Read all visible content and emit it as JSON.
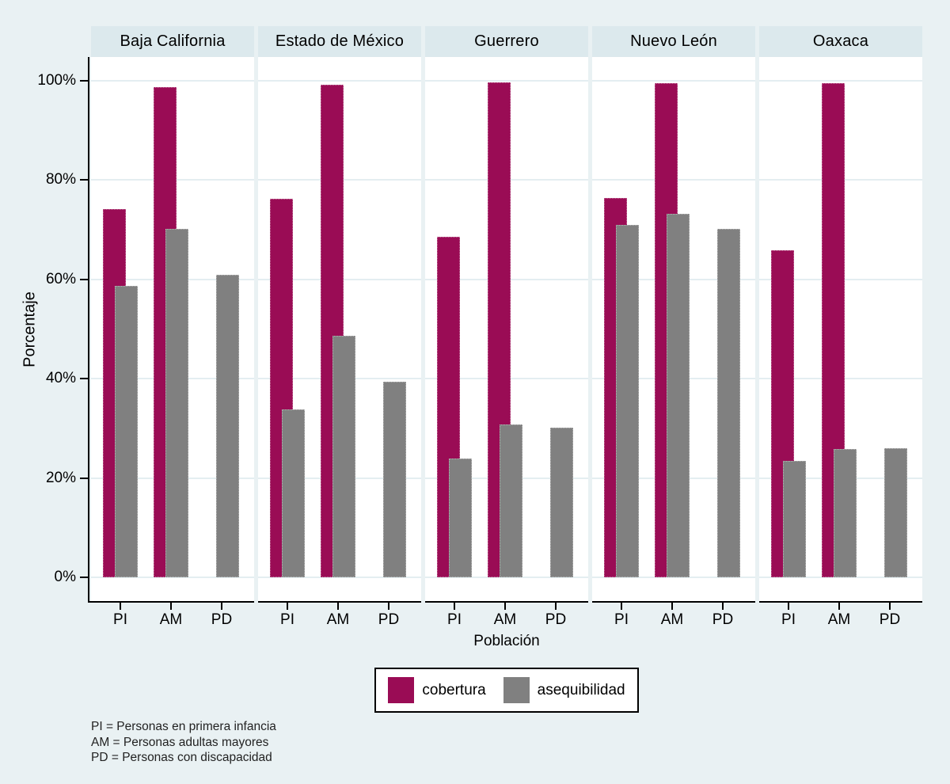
{
  "chart_data": {
    "type": "bar",
    "title": "",
    "xlabel": "Población",
    "ylabel": "Porcentaje",
    "ylim": [
      0,
      105
    ],
    "grid": true,
    "legend_position": "bottom",
    "categories": [
      "PI",
      "AM",
      "PD"
    ],
    "series": [
      {
        "name": "cobertura",
        "color": "#9a0c55"
      },
      {
        "name": "asequibilidad",
        "color": "#808080"
      }
    ],
    "yticks": [
      {
        "label": "0%",
        "value": 0
      },
      {
        "label": "20%",
        "value": 20
      },
      {
        "label": "40%",
        "value": 40
      },
      {
        "label": "60%",
        "value": 60
      },
      {
        "label": "80%",
        "value": 80
      },
      {
        "label": "100%",
        "value": 100
      }
    ],
    "panels": [
      {
        "label": "Baja California",
        "groups": [
          {
            "category": "PI",
            "cobertura": 74.1,
            "asequibilidad": 58.7
          },
          {
            "category": "AM",
            "cobertura": 98.7,
            "asequibilidad": 70.2
          },
          {
            "category": "PD",
            "cobertura": null,
            "asequibilidad": 60.9
          }
        ]
      },
      {
        "label": "Estado de México",
        "groups": [
          {
            "category": "PI",
            "cobertura": 76.2,
            "asequibilidad": 33.8
          },
          {
            "category": "AM",
            "cobertura": 99.2,
            "asequibilidad": 48.6
          },
          {
            "category": "PD",
            "cobertura": null,
            "asequibilidad": 39.4
          }
        ]
      },
      {
        "label": "Guerrero",
        "groups": [
          {
            "category": "PI",
            "cobertura": 68.6,
            "asequibilidad": 23.9
          },
          {
            "category": "AM",
            "cobertura": 99.6,
            "asequibilidad": 30.8
          },
          {
            "category": "PD",
            "cobertura": null,
            "asequibilidad": 30.1
          }
        ]
      },
      {
        "label": "Nuevo León",
        "groups": [
          {
            "category": "PI",
            "cobertura": 76.4,
            "asequibilidad": 70.9
          },
          {
            "category": "AM",
            "cobertura": 99.5,
            "asequibilidad": 73.1
          },
          {
            "category": "PD",
            "cobertura": null,
            "asequibilidad": 70.2
          }
        ]
      },
      {
        "label": "Oaxaca",
        "groups": [
          {
            "category": "PI",
            "cobertura": 65.8,
            "asequibilidad": 23.5
          },
          {
            "category": "AM",
            "cobertura": 99.4,
            "asequibilidad": 25.8
          },
          {
            "category": "PD",
            "cobertura": null,
            "asequibilidad": 26.0
          }
        ]
      }
    ]
  },
  "footnotes": [
    "PI = Personas en primera infancia",
    "AM = Personas adultas mayores",
    "PD = Personas con discapacidad"
  ]
}
